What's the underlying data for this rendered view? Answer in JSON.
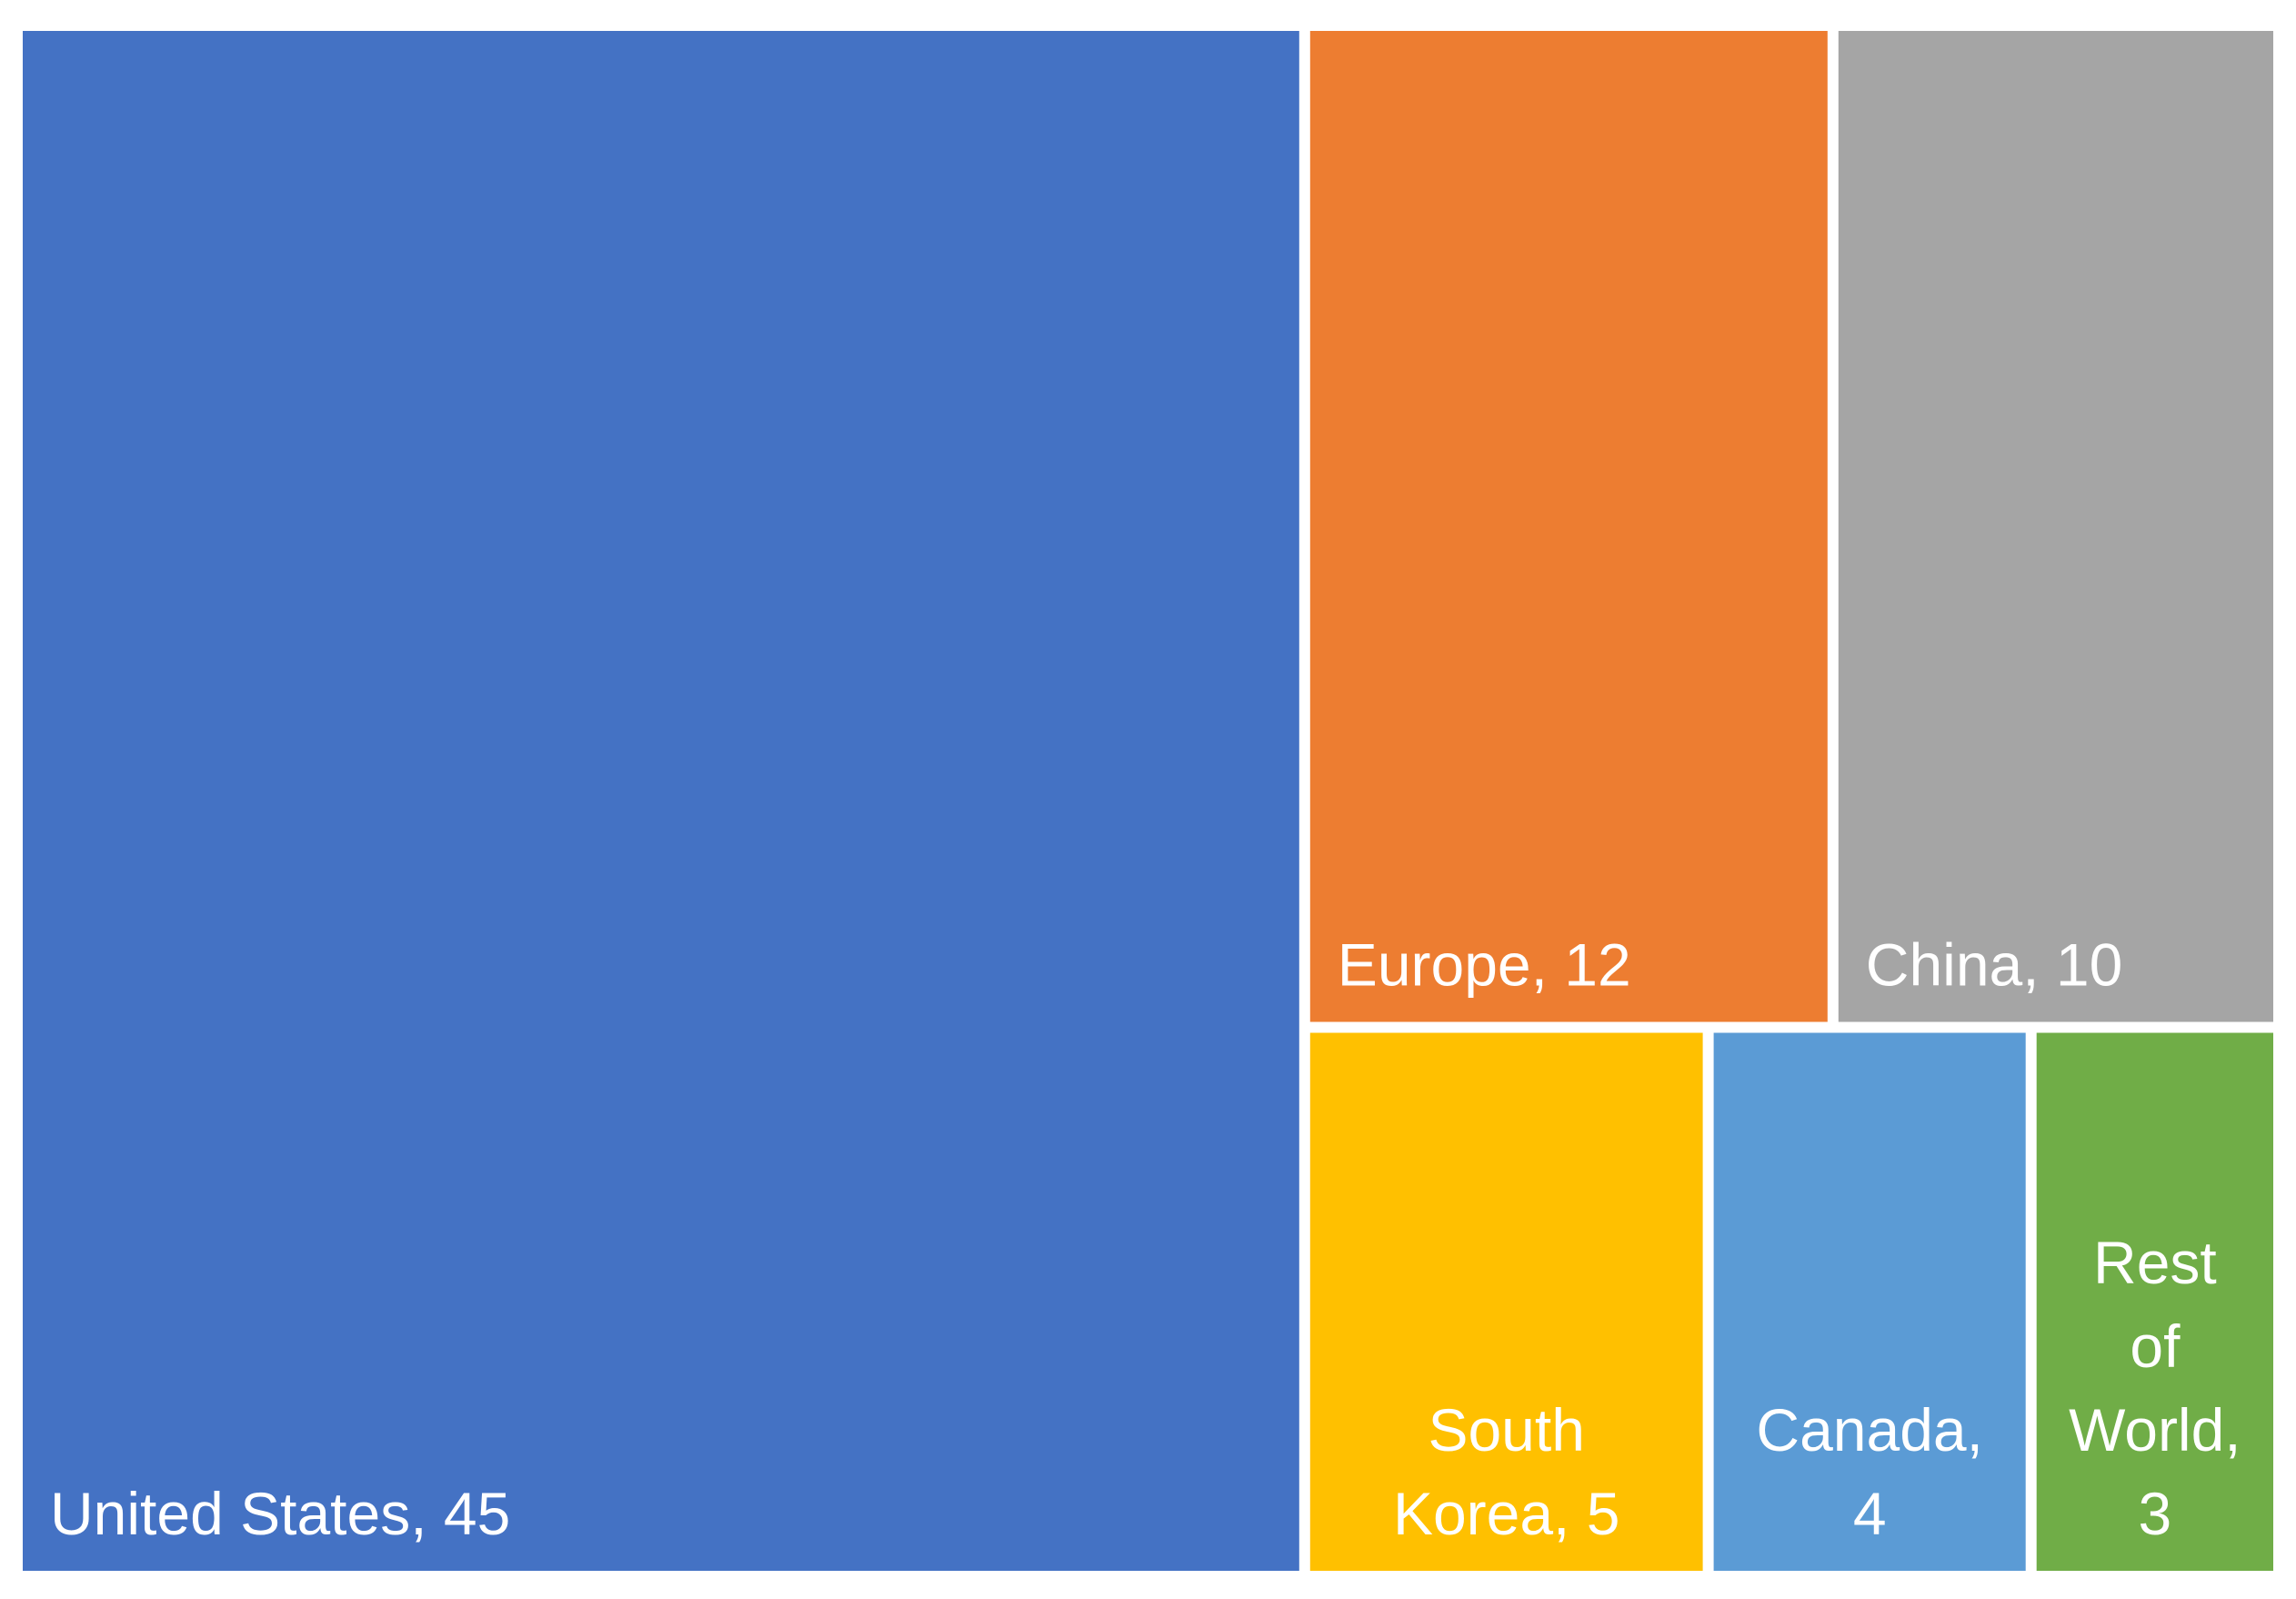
{
  "chart_data": {
    "type": "treemap",
    "title": "",
    "items": [
      {
        "name": "United States",
        "value": 45,
        "label_lines": [
          "United States, 45"
        ],
        "color": "#4472C4"
      },
      {
        "name": "Europe",
        "value": 12,
        "label_lines": [
          "Europe, 12"
        ],
        "color": "#ED7D31"
      },
      {
        "name": "China",
        "value": 10,
        "label_lines": [
          "China, 10"
        ],
        "color": "#A5A5A5"
      },
      {
        "name": "South Korea",
        "value": 5,
        "label_lines": [
          "South",
          "Korea, 5"
        ],
        "color": "#FFC000"
      },
      {
        "name": "Canada",
        "value": 4,
        "label_lines": [
          "Canada,",
          "4"
        ],
        "color": "#5B9BD5"
      },
      {
        "name": "Rest of World",
        "value": 3,
        "label_lines": [
          "Rest",
          "of",
          "World,",
          "3"
        ],
        "color": "#70AD47"
      }
    ]
  }
}
